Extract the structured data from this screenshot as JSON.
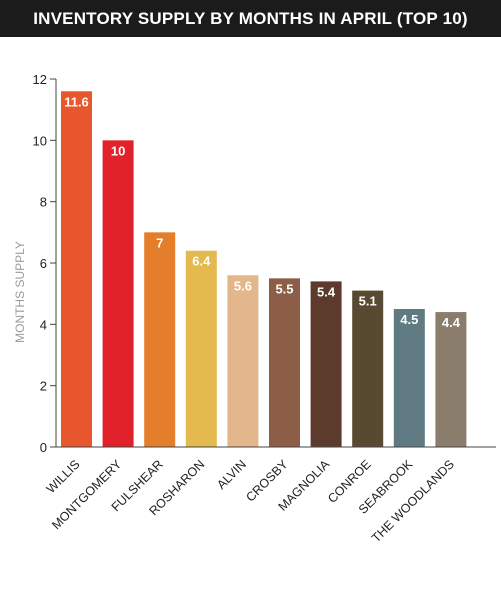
{
  "chart_data": {
    "type": "bar",
    "title": "INVENTORY SUPPLY BY MONTHS IN APRIL (TOP 10)",
    "ylabel": "MONTHS SUPPLY",
    "xlabel": "",
    "ylim": [
      0,
      12
    ],
    "yticks": [
      "0",
      "2",
      "4",
      "6",
      "8",
      "10",
      "12"
    ],
    "grid": false,
    "legend": "none",
    "categories": [
      "WILLIS",
      "MONTGOMERY",
      "FULSHEAR",
      "ROSHARON",
      "ALVIN",
      "CROSBY",
      "MAGNOLIA",
      "CONROE",
      "SEABROOK",
      "THE WOODLANDS"
    ],
    "values": [
      11.6,
      10,
      7,
      6.4,
      5.6,
      5.5,
      5.4,
      5.1,
      4.5,
      4.4
    ],
    "value_labels": [
      "11.6",
      "10",
      "7",
      "6.4",
      "5.6",
      "5.5",
      "5.4",
      "5.1",
      "4.5",
      "4.4"
    ],
    "colors": [
      "#e8562e",
      "#e2222b",
      "#e57e2a",
      "#e4b94e",
      "#e3b68b",
      "#8c5e48",
      "#5c3b2c",
      "#584a31",
      "#5f7a82",
      "#8a7d6c"
    ]
  }
}
